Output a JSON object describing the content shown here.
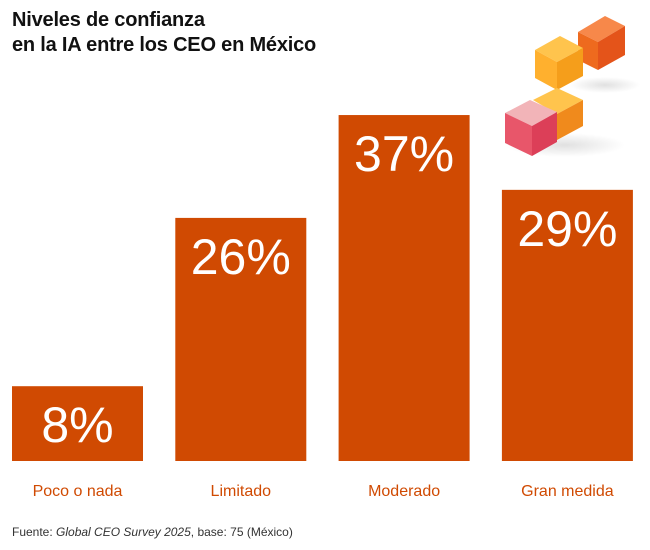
{
  "chart_data": {
    "type": "bar",
    "title": "Niveles de confianza en la IA entre los CEO en México",
    "title_lines": [
      "Niveles de confianza",
      "en la IA entre los CEO en México"
    ],
    "categories": [
      "Poco o nada",
      "Limitado",
      "Moderado",
      "Gran medida"
    ],
    "values": [
      8,
      26,
      37,
      29
    ],
    "value_labels": [
      "8%",
      "26%",
      "37%",
      "29%"
    ],
    "xlabel": "",
    "ylabel": "",
    "ylim": [
      0,
      40
    ],
    "grid": false,
    "legend": "none",
    "bar_color": "#D04A02",
    "category_label_color": "#D04A02",
    "value_label_color": "#FFFFFF"
  },
  "source": {
    "prefix": "Fuente: ",
    "survey": "Global CEO Survey 2025",
    "suffix": ", base: 75 (México)"
  },
  "decoration": {
    "icon": "stacked-cubes-icon"
  }
}
